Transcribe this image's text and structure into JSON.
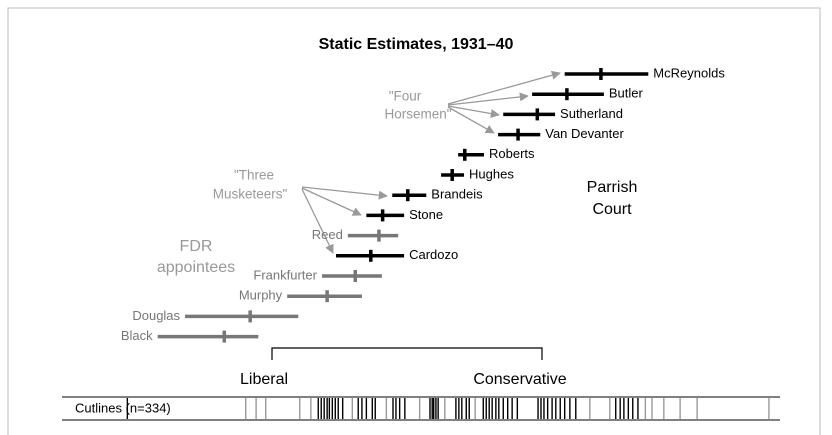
{
  "chart_data": {
    "type": "interval",
    "title": "Static Estimates, 1931–40",
    "xlim": [
      0,
      100
    ],
    "justices": [
      {
        "name": "McReynolds",
        "low": 68.2,
        "estimate": 73.1,
        "high": 79.5,
        "color": "#000000"
      },
      {
        "name": "Butler",
        "low": 63.8,
        "estimate": 68.5,
        "high": 73.5,
        "color": "#000000"
      },
      {
        "name": "Sutherland",
        "low": 59.9,
        "estimate": 64.5,
        "high": 66.9,
        "color": "#000000"
      },
      {
        "name": "Van Devanter",
        "low": 59.2,
        "estimate": 61.9,
        "high": 64.9,
        "color": "#000000"
      },
      {
        "name": "Roberts",
        "low": 53.8,
        "estimate": 54.7,
        "high": 57.3,
        "color": "#000000"
      },
      {
        "name": "Hughes",
        "low": 51.5,
        "estimate": 53.0,
        "high": 54.6,
        "color": "#000000"
      },
      {
        "name": "Brandeis",
        "low": 44.9,
        "estimate": 47.0,
        "high": 49.5,
        "color": "#000000"
      },
      {
        "name": "Stone",
        "low": 41.4,
        "estimate": 43.6,
        "high": 46.5,
        "color": "#000000"
      },
      {
        "name": "Reed",
        "low": 38.9,
        "estimate": 43.1,
        "high": 45.7,
        "color": "#777777"
      },
      {
        "name": "Cardozo",
        "low": 37.3,
        "estimate": 42.0,
        "high": 46.5,
        "color": "#000000"
      },
      {
        "name": "Frankfurter",
        "low": 35.4,
        "estimate": 39.9,
        "high": 43.5,
        "color": "#777777"
      },
      {
        "name": "Murphy",
        "low": 30.7,
        "estimate": 36.1,
        "high": 40.8,
        "color": "#777777"
      },
      {
        "name": "Douglas",
        "low": 16.9,
        "estimate": 25.7,
        "high": 32.2,
        "color": "#777777"
      },
      {
        "name": "Black",
        "low": 13.2,
        "estimate": 22.2,
        "high": 26.8,
        "color": "#777777"
      }
    ],
    "annotations": {
      "four_horsemen": [
        "\"Four",
        "Horsemen\""
      ],
      "three_musketeers": [
        "\"Three",
        "Musketeers\""
      ],
      "fdr": [
        "FDR",
        "appointees"
      ],
      "parrish": [
        "Parrish",
        "Court"
      ],
      "liberal": "Liberal",
      "conservative": "Conservative"
    },
    "cutlines": {
      "label": "Cutlines (n=334)",
      "series": [
        {
          "color": "#999999",
          "values": [
            25.1,
            26.5,
            27.8,
            32.4,
            33.9,
            39.5,
            44.1,
            48.6,
            52.0,
            56.1,
            71.6,
            74.3,
            79.1,
            80.0,
            81.6,
            83.8,
            86.1,
            95.8
          ]
        },
        {
          "color": "#000000",
          "values": [
            9.1,
            34.9,
            35.3,
            35.7,
            36.1,
            36.4,
            36.8,
            37.2,
            37.6,
            38.2,
            40.3,
            40.8,
            41.4,
            42.2,
            42.6,
            45.0,
            45.4,
            45.9,
            46.6,
            50.0,
            50.3,
            50.5,
            50.8,
            51.1,
            53.5,
            53.9,
            54.3,
            54.9,
            55.3,
            57.2,
            57.6,
            58.0,
            58.4,
            58.9,
            59.3,
            59.9,
            60.5,
            61.1,
            61.8,
            64.6,
            65.0,
            65.4,
            65.9,
            66.5,
            67.0,
            67.6,
            68.2,
            68.9,
            69.7,
            75.1,
            75.7,
            76.2,
            76.8,
            77.4,
            78.1
          ]
        }
      ]
    }
  }
}
